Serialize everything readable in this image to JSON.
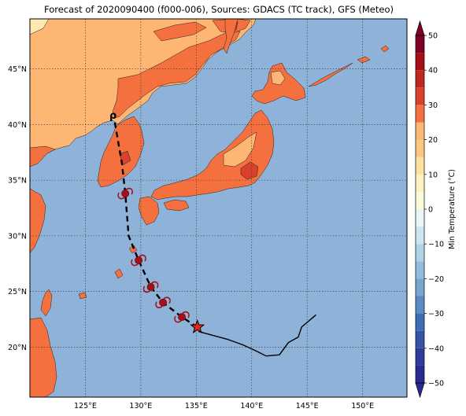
{
  "title": "Forecast of 2020090400 (f000-006), Sources: GDACS (TC track), GFS (Meteo)",
  "colors": {
    "sea": "#8fb2d8",
    "land_warm": "#fdb674",
    "land_hot": "#f4713f",
    "land_hotter": "#d9412b",
    "land_cool": "#fee8b2",
    "track_past": "#000000",
    "storm_symbol": "#a50f15",
    "star": "#e8261c"
  },
  "map": {
    "lon_range": [
      120.0,
      154.0
    ],
    "lat_range": [
      15.5,
      49.5
    ],
    "lon_ticks": [
      {
        "value": 125,
        "label": "125°E"
      },
      {
        "value": 130,
        "label": "130°E"
      },
      {
        "value": 135,
        "label": "135°E"
      },
      {
        "value": 140,
        "label": "140°E"
      },
      {
        "value": 145,
        "label": "145°E"
      },
      {
        "value": 150,
        "label": "150°E"
      }
    ],
    "lat_ticks": [
      {
        "value": 20,
        "label": "20°N"
      },
      {
        "value": 25,
        "label": "25°N"
      },
      {
        "value": 30,
        "label": "30°N"
      },
      {
        "value": 35,
        "label": "35°N"
      },
      {
        "value": 40,
        "label": "40°N"
      },
      {
        "value": 45,
        "label": "45°N"
      }
    ]
  },
  "track": {
    "observed": [
      [
        145.8,
        22.9
      ],
      [
        144.5,
        21.8
      ],
      [
        144.2,
        20.9
      ],
      [
        143.3,
        20.4
      ],
      [
        142.5,
        19.3
      ],
      [
        141.3,
        19.2
      ],
      [
        140.3,
        19.7
      ],
      [
        139.2,
        20.2
      ],
      [
        137.8,
        20.7
      ],
      [
        135.2,
        21.4
      ]
    ],
    "current_position": [
      135.1,
      21.8
    ],
    "forecast": [
      [
        135.1,
        21.8
      ],
      [
        133.7,
        22.7
      ],
      [
        132.0,
        24.0
      ],
      [
        130.9,
        25.4
      ],
      [
        129.8,
        27.8
      ],
      [
        128.9,
        30.0
      ],
      [
        128.6,
        33.8
      ],
      [
        128.3,
        36.5
      ],
      [
        127.6,
        40.5
      ]
    ],
    "storm_symbols": [
      [
        133.7,
        22.7
      ],
      [
        132.0,
        24.0
      ],
      [
        130.9,
        25.4
      ],
      [
        129.8,
        27.8
      ],
      [
        128.6,
        33.8
      ]
    ],
    "depression_symbol": [
      127.5,
      40.8
    ]
  },
  "colorbar": {
    "title": "Min Temperature (°C)",
    "min": -50,
    "max": 50,
    "tick_labels": [
      "−50",
      "−40",
      "−30",
      "−20",
      "−10",
      "0",
      "10",
      "20",
      "30",
      "40",
      "50"
    ],
    "tick_values": [
      -50,
      -40,
      -30,
      -20,
      -10,
      0,
      10,
      20,
      30,
      40,
      50
    ],
    "bands": [
      {
        "from": -50,
        "to": -45,
        "color": "#2b2a8f"
      },
      {
        "from": -45,
        "to": -40,
        "color": "#2f3c99"
      },
      {
        "from": -40,
        "to": -35,
        "color": "#3554a6"
      },
      {
        "from": -35,
        "to": -30,
        "color": "#3f6db3"
      },
      {
        "from": -30,
        "to": -25,
        "color": "#5a8cc2"
      },
      {
        "from": -25,
        "to": -20,
        "color": "#76a6cf"
      },
      {
        "from": -20,
        "to": -15,
        "color": "#92bddc"
      },
      {
        "from": -15,
        "to": -10,
        "color": "#b1d3e8"
      },
      {
        "from": -10,
        "to": -5,
        "color": "#cfe6f1"
      },
      {
        "from": -5,
        "to": 0,
        "color": "#e9f5f7"
      },
      {
        "from": 0,
        "to": 5,
        "color": "#fbfbd9"
      },
      {
        "from": 5,
        "to": 10,
        "color": "#fff2bf"
      },
      {
        "from": 10,
        "to": 15,
        "color": "#fee1a0"
      },
      {
        "from": 15,
        "to": 20,
        "color": "#fdc77f"
      },
      {
        "from": 20,
        "to": 25,
        "color": "#fdb674"
      },
      {
        "from": 25,
        "to": 30,
        "color": "#f4713f"
      },
      {
        "from": 30,
        "to": 35,
        "color": "#d9412b"
      },
      {
        "from": 35,
        "to": 40,
        "color": "#c1271d"
      },
      {
        "from": 40,
        "to": 45,
        "color": "#a50f15"
      },
      {
        "from": 45,
        "to": 50,
        "color": "#800026"
      }
    ]
  }
}
